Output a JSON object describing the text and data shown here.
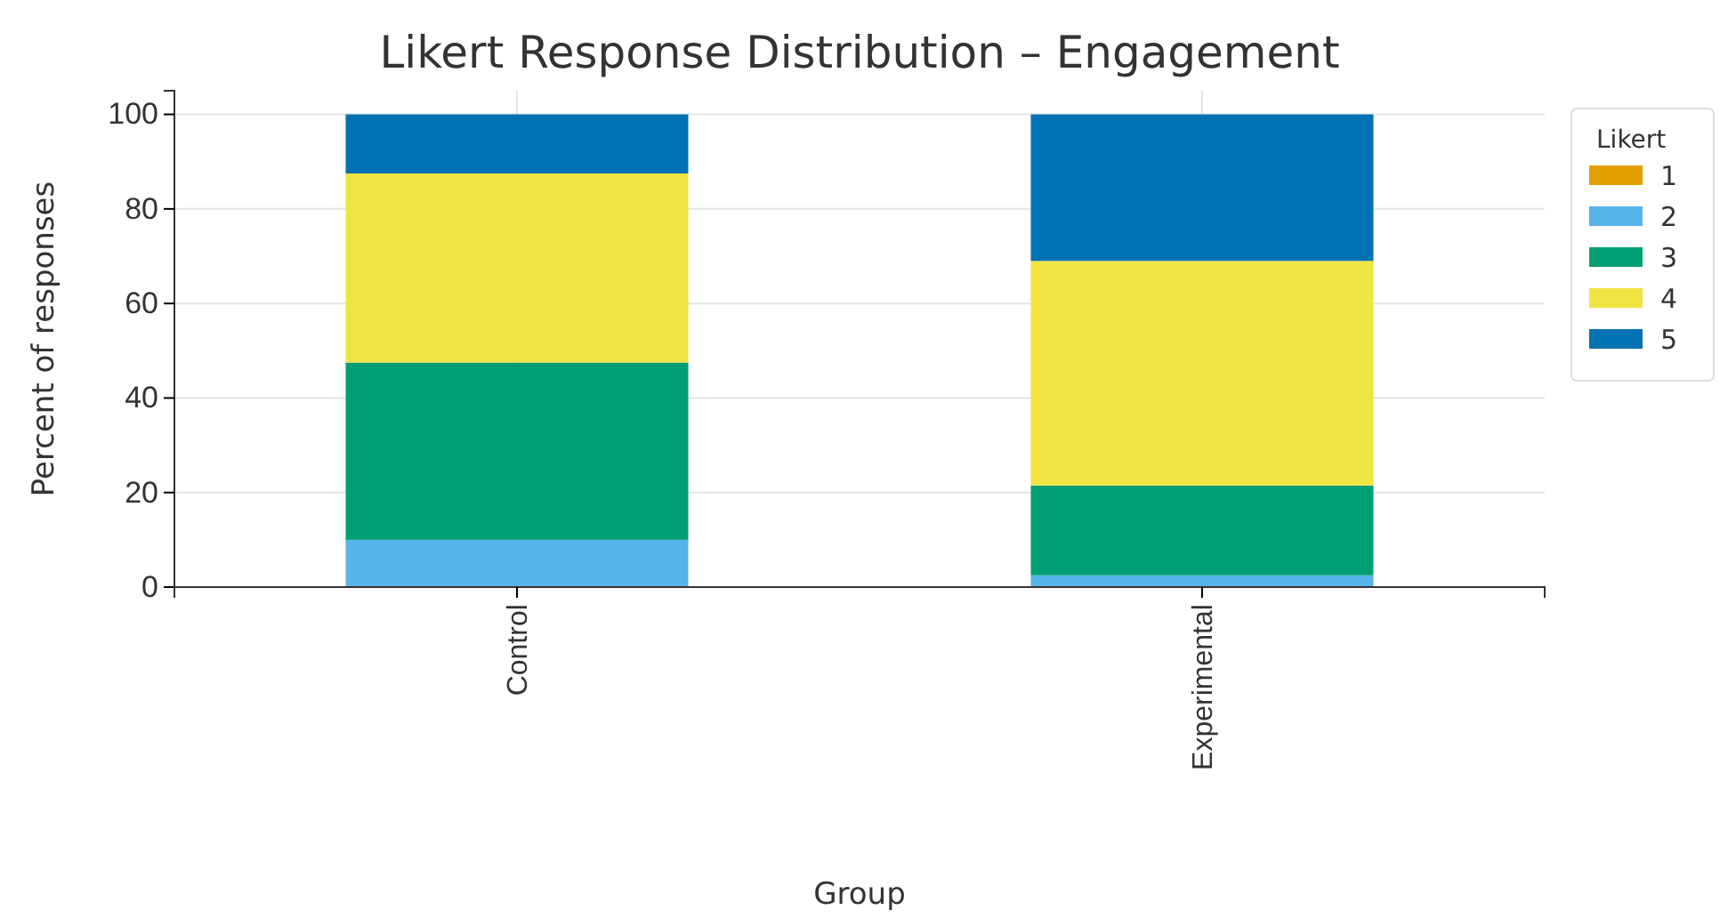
{
  "chart_data": {
    "type": "bar",
    "title": "Likert Response Distribution – Engagement",
    "xlabel": "Group",
    "ylabel": "Percent of responses",
    "legend_title": "Likert",
    "categories": [
      "Control",
      "Experimental"
    ],
    "stacked": true,
    "series": [
      {
        "name": "1",
        "color": "#e69f00",
        "values": [
          0,
          0
        ]
      },
      {
        "name": "2",
        "color": "#56b4e9",
        "values": [
          10,
          2.5
        ]
      },
      {
        "name": "3",
        "color": "#009e73",
        "values": [
          37.5,
          19
        ]
      },
      {
        "name": "4",
        "color": "#f0e442",
        "values": [
          40,
          47.5
        ]
      },
      {
        "name": "5",
        "color": "#0072b2",
        "values": [
          12.5,
          31
        ]
      }
    ],
    "ylim": [
      0,
      105
    ],
    "yticks": [
      0,
      20,
      40,
      60,
      80,
      100
    ],
    "grid": true,
    "legend": "top right"
  }
}
